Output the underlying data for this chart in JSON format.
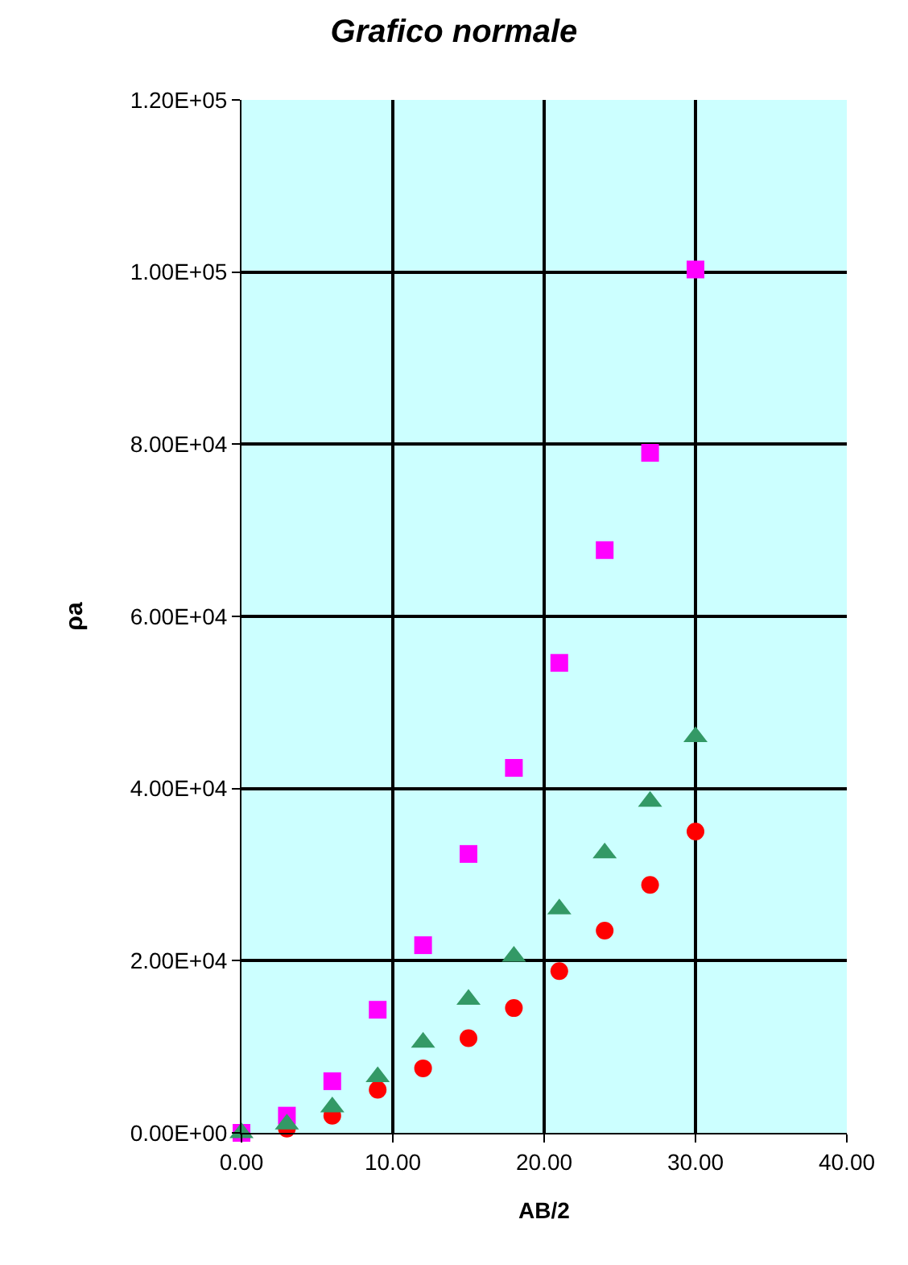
{
  "chart_data": {
    "type": "scatter",
    "title": "Grafico normale",
    "xlabel": "AB/2",
    "ylabel": "ρa",
    "x": [
      0,
      3,
      6,
      9,
      12,
      15,
      18,
      21,
      24,
      27,
      30
    ],
    "series": [
      {
        "color": "#ff0000",
        "marker": "circle",
        "values": [
          null,
          500,
          2000,
          5000,
          7500,
          11000,
          14500,
          18800,
          23500,
          28800,
          35000
        ]
      },
      {
        "color": "#ff00ff",
        "marker": "square",
        "values": [
          0,
          2000,
          6000,
          14300,
          21800,
          32400,
          42400,
          54600,
          67700,
          79000,
          100300
        ]
      },
      {
        "color": "#339966",
        "marker": "triangle",
        "values": [
          0,
          1000,
          3000,
          6500,
          10500,
          15500,
          20500,
          26000,
          32500,
          38500,
          46000
        ]
      }
    ],
    "xlim": [
      0,
      40
    ],
    "xticks": [
      {
        "value": 0,
        "label": "0.00"
      },
      {
        "value": 10,
        "label": "10.00"
      },
      {
        "value": 20,
        "label": "20.00"
      },
      {
        "value": 30,
        "label": "30.00"
      },
      {
        "value": 40,
        "label": "40.00"
      }
    ],
    "ylim": [
      0,
      120000
    ],
    "yticks": [
      {
        "value": 0,
        "label": "0.00E+00"
      },
      {
        "value": 20000,
        "label": "2.00E+04"
      },
      {
        "value": 40000,
        "label": "4.00E+04"
      },
      {
        "value": 60000,
        "label": "6.00E+04"
      },
      {
        "value": 80000,
        "label": "8.00E+04"
      },
      {
        "value": 100000,
        "label": "1.00E+05"
      },
      {
        "value": 120000,
        "label": "1.20E+05"
      }
    ],
    "grid": true
  }
}
